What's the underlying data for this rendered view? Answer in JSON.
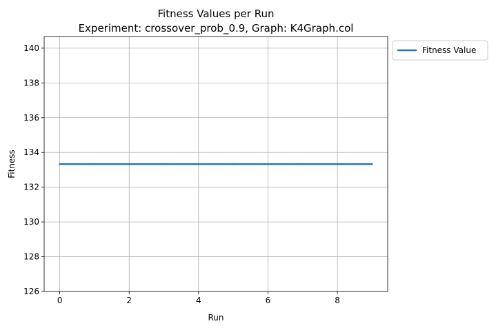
{
  "chart_data": {
    "type": "line",
    "title": "Fitness Values per Run",
    "subtitle": "Experiment: crossover_prob_0.9, Graph: K4Graph.col",
    "xlabel": "Run",
    "ylabel": "Fitness",
    "xlim": [
      -0.45,
      9.45
    ],
    "ylim": [
      126,
      140.67
    ],
    "xticks": [
      0,
      2,
      4,
      6,
      8
    ],
    "yticks": [
      126,
      128,
      130,
      132,
      134,
      136,
      138,
      140
    ],
    "grid": true,
    "legend_position": "outside-top-right",
    "series": [
      {
        "name": "Fitness Value",
        "color": "#1f77b4",
        "x": [
          0,
          1,
          2,
          3,
          4,
          5,
          6,
          7,
          8,
          9
        ],
        "y": [
          133.33,
          133.33,
          133.33,
          133.33,
          133.33,
          133.33,
          133.33,
          133.33,
          133.33,
          133.33
        ]
      }
    ]
  }
}
